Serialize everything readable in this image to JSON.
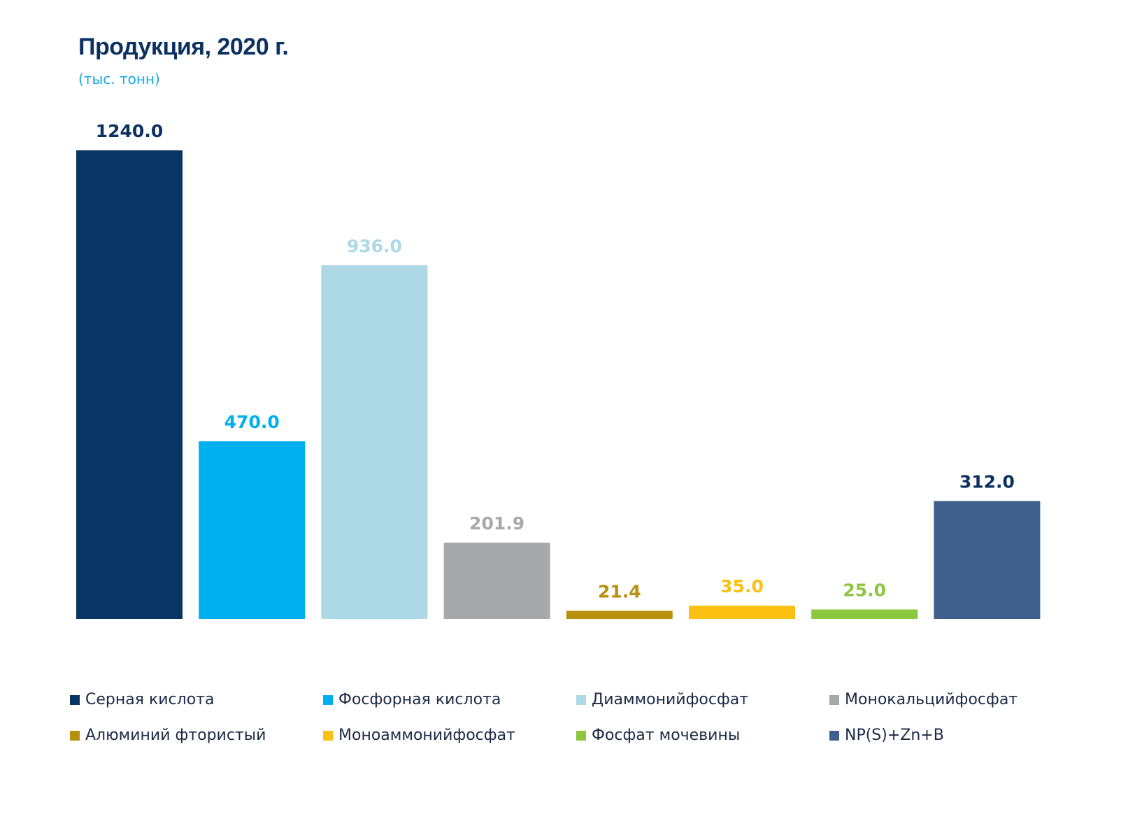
{
  "chart_data": {
    "type": "bar",
    "title": "Продукция, 2020 г.",
    "subtitle": "(тыс. тонн)",
    "categories": [
      "Серная кислота",
      "Фосфорная кислота",
      "Диаммонийфосфат",
      "Монокальцийфосфат",
      "Алюминий фтористый",
      "Моноаммонийфосфат",
      "Фосфат мочевины",
      "NP(S)+Zn+B"
    ],
    "values": [
      1240.0,
      470.0,
      936.0,
      201.9,
      21.4,
      35.0,
      25.0,
      312.0
    ],
    "value_labels": [
      "1240.0",
      "470.0",
      "936.0",
      "201.9",
      "21.4",
      "35.0",
      "25.0",
      "312.0"
    ],
    "colors": [
      "#083563",
      "#00b0ee",
      "#add8e6",
      "#a6a8aa",
      "#b8900e",
      "#fbc012",
      "#8dc63f",
      "#3f5f8c"
    ],
    "label_colors": [
      "#0b3160",
      "#00b0ee",
      "#add8e6",
      "#a6a8aa",
      "#b8900e",
      "#fbc012",
      "#8dc63f",
      "#0b3160"
    ],
    "ylim": [
      0,
      1240
    ],
    "grid": false,
    "legend_position": "bottom"
  }
}
